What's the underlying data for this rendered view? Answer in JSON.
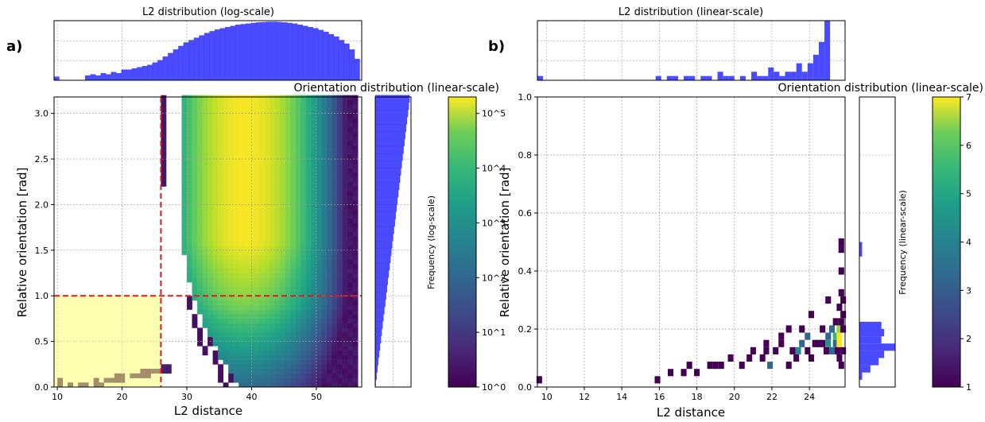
{
  "panels": {
    "a": {
      "label": "a)"
    },
    "b": {
      "label": "b)"
    }
  },
  "chart_data": [
    {
      "panel": "a",
      "type": "heatmap",
      "title": "L2 distribution (log-scale)",
      "side_title": "Orientation distribution (linear-scale)",
      "xlabel": "L2 distance",
      "ylabel": "Relative orientation [rad]",
      "xlim": [
        9.5,
        57
      ],
      "ylim": [
        0,
        3.18
      ],
      "xticks": [
        10,
        20,
        30,
        40,
        50
      ],
      "yticks": [
        0.0,
        0.5,
        1.0,
        1.5,
        2.0,
        2.5,
        3.0
      ],
      "colorbar": {
        "label": "Frequency (log-scale)",
        "scale": "log",
        "range": [
          1,
          200000
        ],
        "ticks": [
          "10^0",
          "10^1",
          "10^2",
          "10^3",
          "10^4",
          "10^5"
        ],
        "colormap": "viridis"
      },
      "threshold_lines": {
        "x": 26,
        "y": 1.0,
        "color": "#e31a1c",
        "style": "dashed"
      },
      "highlight_region": {
        "x": [
          9.5,
          26
        ],
        "y": [
          0,
          1.0
        ],
        "color": "#ffff66"
      },
      "grid": true,
      "top_histogram": {
        "scale": "log",
        "bin_start": 9.5,
        "bin_width": 0.8,
        "values_log10": [
          0.3,
          0.0,
          0.0,
          0.0,
          0.0,
          0.0,
          0.4,
          0.5,
          0.4,
          0.6,
          0.5,
          0.7,
          0.6,
          0.9,
          0.9,
          1.0,
          1.1,
          1.2,
          1.3,
          1.5,
          1.7,
          2.0,
          2.3,
          2.6,
          2.9,
          3.2,
          3.4,
          3.6,
          3.8,
          4.0,
          4.15,
          4.3,
          4.4,
          4.5,
          4.6,
          4.7,
          4.75,
          4.8,
          4.85,
          4.9,
          4.92,
          4.95,
          4.95,
          4.93,
          4.9,
          4.85,
          4.8,
          4.7,
          4.6,
          4.5,
          4.4,
          4.25,
          4.1,
          3.9,
          3.7,
          3.4,
          3.1,
          2.6,
          1.8
        ]
      },
      "side_histogram": {
        "scale": "linear",
        "orientation": "horizontal",
        "trend": "frequency increases linearly with orientation from 0 to 3.14"
      }
    },
    {
      "panel": "b",
      "type": "heatmap",
      "title": "L2 distribution (linear-scale)",
      "side_title": "Orientation distribution (linear-scale)",
      "xlabel": "L2 distance",
      "ylabel": "Relative orientation [rad]",
      "xlim": [
        9.5,
        25.9
      ],
      "ylim": [
        0,
        1.0
      ],
      "xticks": [
        10,
        12,
        14,
        16,
        18,
        20,
        22,
        24
      ],
      "yticks": [
        0.0,
        0.2,
        0.4,
        0.6,
        0.8,
        1.0
      ],
      "colorbar": {
        "label": "Frequency (linear-scale)",
        "scale": "linear",
        "range": [
          1,
          7
        ],
        "ticks": [
          1,
          2,
          3,
          4,
          5,
          6,
          7
        ],
        "colormap": "viridis"
      },
      "grid": true,
      "cells": [
        [
          9.6,
          0.025,
          1
        ],
        [
          15.9,
          0.025,
          1
        ],
        [
          16.6,
          0.05,
          1
        ],
        [
          17.3,
          0.05,
          1
        ],
        [
          17.6,
          0.075,
          1
        ],
        [
          18.0,
          0.05,
          1
        ],
        [
          18.7,
          0.075,
          1
        ],
        [
          19.0,
          0.075,
          1
        ],
        [
          19.3,
          0.075,
          1
        ],
        [
          19.8,
          0.1,
          1
        ],
        [
          20.4,
          0.075,
          1
        ],
        [
          20.8,
          0.1,
          1
        ],
        [
          21.0,
          0.125,
          1
        ],
        [
          21.5,
          0.1,
          1
        ],
        [
          21.7,
          0.125,
          1
        ],
        [
          21.7,
          0.15,
          1
        ],
        [
          21.9,
          0.075,
          3
        ],
        [
          22.2,
          0.125,
          1
        ],
        [
          22.5,
          0.15,
          1
        ],
        [
          22.5,
          0.175,
          1
        ],
        [
          22.9,
          0.075,
          1
        ],
        [
          22.9,
          0.2,
          1
        ],
        [
          23.1,
          0.125,
          1
        ],
        [
          23.3,
          0.1,
          1
        ],
        [
          23.4,
          0.125,
          4
        ],
        [
          23.6,
          0.15,
          3
        ],
        [
          23.6,
          0.2,
          1
        ],
        [
          23.9,
          0.125,
          1
        ],
        [
          23.9,
          0.175,
          3
        ],
        [
          24.1,
          0.1,
          1
        ],
        [
          24.1,
          0.25,
          1
        ],
        [
          24.3,
          0.15,
          1
        ],
        [
          24.5,
          0.15,
          1
        ],
        [
          24.7,
          0.15,
          1
        ],
        [
          24.7,
          0.2,
          1
        ],
        [
          24.9,
          0.125,
          1
        ],
        [
          25.0,
          0.15,
          4
        ],
        [
          25.0,
          0.175,
          3
        ],
        [
          25.0,
          0.3,
          1
        ],
        [
          25.2,
          0.125,
          3
        ],
        [
          25.2,
          0.2,
          3
        ],
        [
          25.4,
          0.15,
          3
        ],
        [
          25.4,
          0.175,
          5
        ],
        [
          25.4,
          0.225,
          1
        ],
        [
          25.5,
          0.125,
          1
        ],
        [
          25.6,
          0.175,
          7
        ],
        [
          25.6,
          0.2,
          6
        ],
        [
          25.6,
          0.15,
          7
        ],
        [
          25.6,
          0.1,
          1
        ],
        [
          25.6,
          0.275,
          1
        ],
        [
          25.7,
          0.325,
          1
        ],
        [
          25.7,
          0.225,
          1
        ],
        [
          25.7,
          0.075,
          1
        ],
        [
          25.7,
          0.4,
          1
        ],
        [
          25.7,
          0.475,
          1
        ],
        [
          25.7,
          0.5,
          1
        ],
        [
          25.8,
          0.25,
          1
        ],
        [
          25.8,
          0.3,
          1
        ],
        [
          25.8,
          0.125,
          1
        ],
        [
          25.8,
          0.2,
          1
        ]
      ],
      "top_histogram": {
        "scale": "linear",
        "bin_start": 9.5,
        "bin_width": 0.3,
        "values": [
          1,
          0,
          0,
          0,
          0,
          0,
          0,
          0,
          0,
          0,
          0,
          0,
          0,
          0,
          0,
          0,
          0,
          0,
          0,
          0,
          0,
          1,
          0,
          1,
          1,
          0,
          1,
          1,
          0,
          1,
          1,
          0,
          2,
          1,
          1,
          0,
          1,
          0,
          2,
          1,
          1,
          3,
          2,
          1,
          2,
          2,
          4,
          2,
          4,
          6,
          9,
          14
        ]
      },
      "side_histogram": {
        "scale": "linear",
        "orientation": "horizontal",
        "bin_width": 0.025,
        "values": [
          0,
          1,
          4,
          7,
          9,
          13,
          8,
          9,
          8,
          0,
          0,
          0,
          0,
          0,
          0,
          0,
          0,
          0,
          1,
          1,
          0,
          0
        ]
      }
    }
  ]
}
